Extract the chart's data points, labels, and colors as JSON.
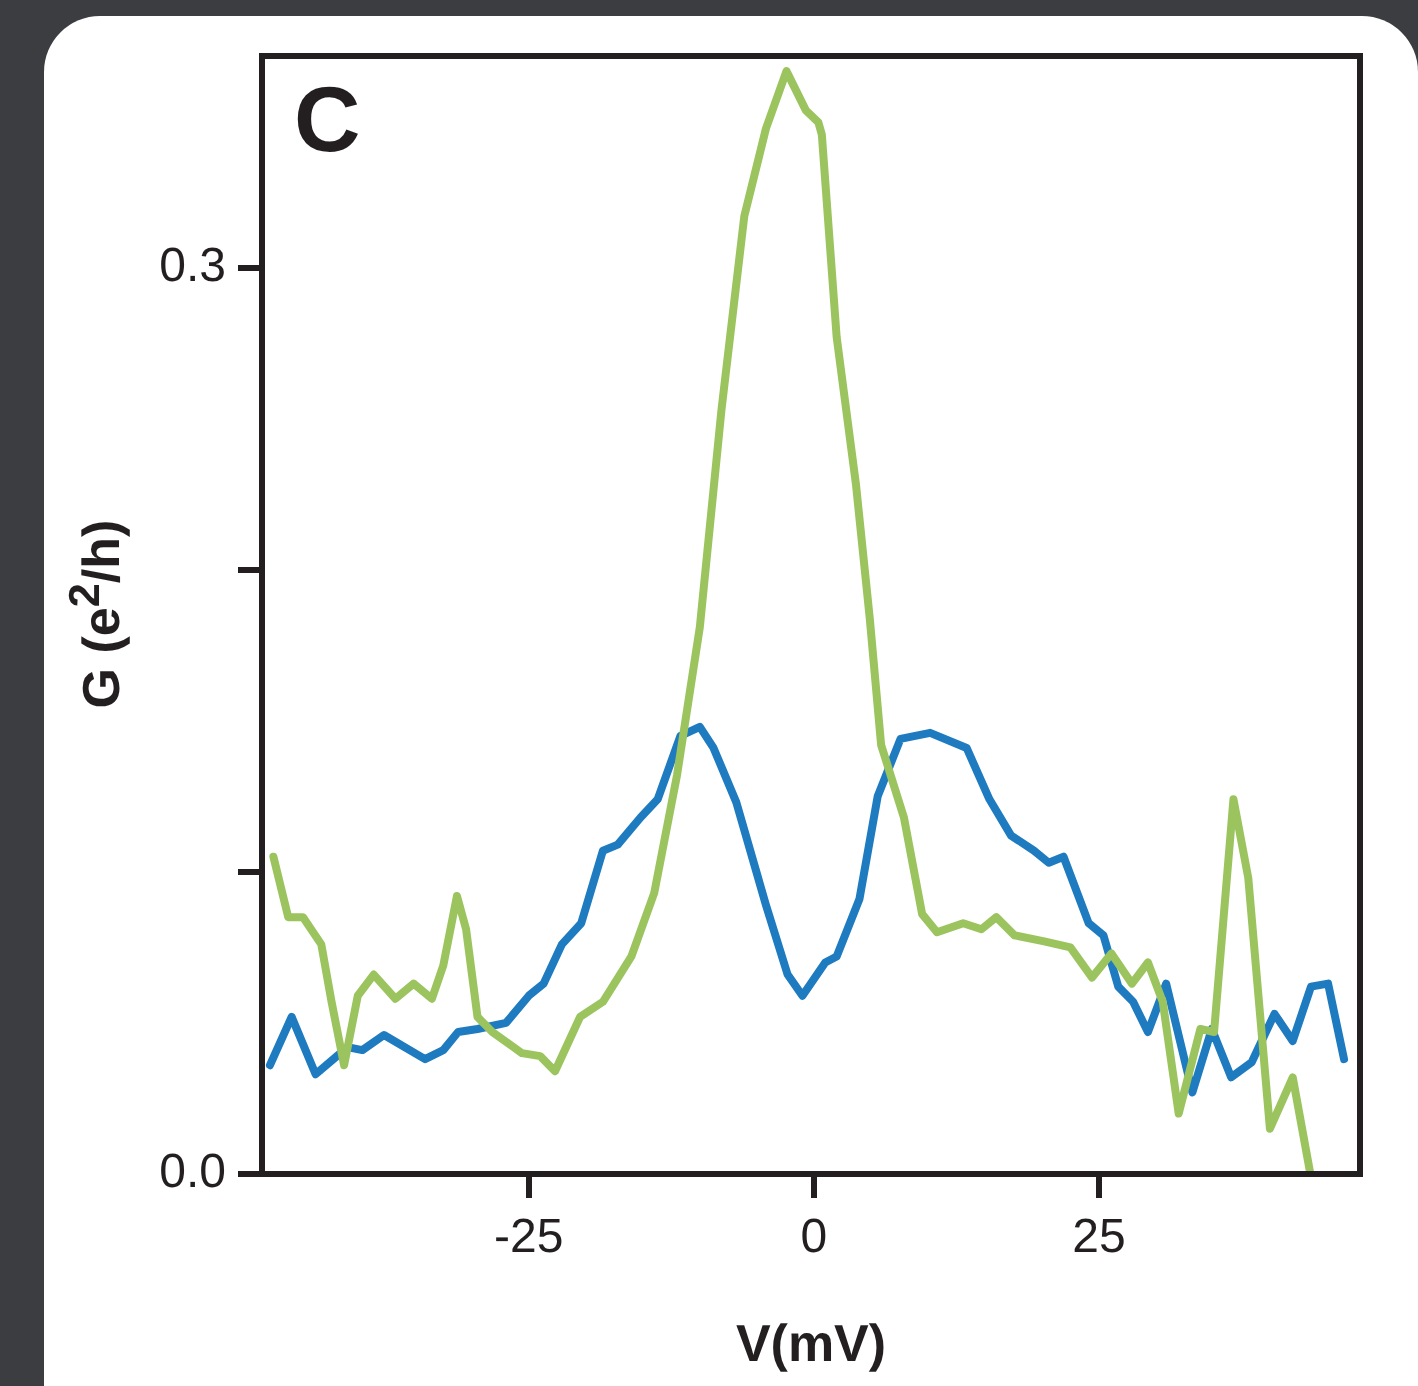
{
  "chart_data": {
    "type": "line",
    "xlabel": "V(mV)",
    "ylabel": "G (e$^{2}$/h)",
    "annotations": [
      "C"
    ],
    "xlim": [
      -48.4,
      47.9
    ],
    "ylim": [
      0,
      0.37
    ],
    "xticks": [
      -25,
      0,
      25
    ],
    "yticks": [
      {
        "value": 0,
        "label": "0.0"
      },
      {
        "value": 0.1,
        "label": null
      },
      {
        "value": 0.2,
        "label": null
      },
      0.3
    ],
    "grid": false,
    "legend": false,
    "line_style": "solid",
    "series": [
      {
        "color": "#9bc45f",
        "x": [
          -47.4,
          -46.1,
          -44.8,
          -43.2,
          -42.3,
          -41.2,
          -40.0,
          -38.6,
          -36.7,
          -35.1,
          -33.5,
          -32.5,
          -31.3,
          -30.5,
          -29.5,
          -28.2,
          -25.6,
          -24.0,
          -22.7,
          -20.5,
          -18.5,
          -16.0,
          -14.0,
          -12.0,
          -10.0,
          -8.1,
          -6.1,
          -4.2,
          -2.4,
          -0.7,
          0.4,
          0.7,
          2.0,
          3.7,
          4.9,
          5.9,
          7.9,
          9.5,
          10.8,
          13.1,
          14.7,
          16.0,
          17.6,
          20.2,
          22.5,
          24.4,
          26.1,
          27.9,
          29.3,
          30.6,
          32.0,
          33.9,
          35.1,
          36.8,
          38.1,
          40.0,
          42.0,
          43.5
        ],
        "values": [
          0.105,
          0.085,
          0.085,
          0.076,
          0.057,
          0.036,
          0.059,
          0.066,
          0.058,
          0.063,
          0.058,
          0.069,
          0.092,
          0.081,
          0.052,
          0.047,
          0.04,
          0.039,
          0.034,
          0.052,
          0.057,
          0.072,
          0.093,
          0.132,
          0.181,
          0.253,
          0.317,
          0.346,
          0.365,
          0.352,
          0.348,
          0.344,
          0.277,
          0.228,
          0.184,
          0.142,
          0.118,
          0.086,
          0.08,
          0.083,
          0.081,
          0.085,
          0.079,
          0.077,
          0.075,
          0.065,
          0.073,
          0.063,
          0.07,
          0.057,
          0.02,
          0.048,
          0.047,
          0.124,
          0.098,
          0.015,
          0.032,
          0.001
        ]
      },
      {
        "color": "#1f7bc0",
        "x": [
          -47.7,
          -45.8,
          -43.7,
          -40.9,
          -39.6,
          -37.7,
          -34.1,
          -32.5,
          -31.2,
          -29.5,
          -27.0,
          -25.0,
          -23.7,
          -22.1,
          -20.4,
          -18.5,
          -17.2,
          -15.2,
          -13.7,
          -11.7,
          -10.0,
          -8.8,
          -6.8,
          -4.2,
          -2.3,
          -1.0,
          1.0,
          2.0,
          4.0,
          5.6,
          7.6,
          10.2,
          13.4,
          15.4,
          17.3,
          19.3,
          20.6,
          21.9,
          24.1,
          25.4,
          26.7,
          28.0,
          29.3,
          30.9,
          33.2,
          34.9,
          36.6,
          38.4,
          40.4,
          42.0,
          43.6,
          45.1,
          46.5
        ],
        "values": [
          0.036,
          0.052,
          0.033,
          0.042,
          0.041,
          0.046,
          0.038,
          0.041,
          0.047,
          0.048,
          0.05,
          0.059,
          0.063,
          0.076,
          0.083,
          0.107,
          0.109,
          0.118,
          0.124,
          0.145,
          0.148,
          0.141,
          0.123,
          0.089,
          0.066,
          0.059,
          0.07,
          0.072,
          0.091,
          0.125,
          0.144,
          0.146,
          0.141,
          0.124,
          0.112,
          0.107,
          0.103,
          0.105,
          0.083,
          0.079,
          0.062,
          0.057,
          0.047,
          0.063,
          0.027,
          0.048,
          0.032,
          0.037,
          0.053,
          0.044,
          0.062,
          0.063,
          0.038
        ]
      }
    ]
  }
}
